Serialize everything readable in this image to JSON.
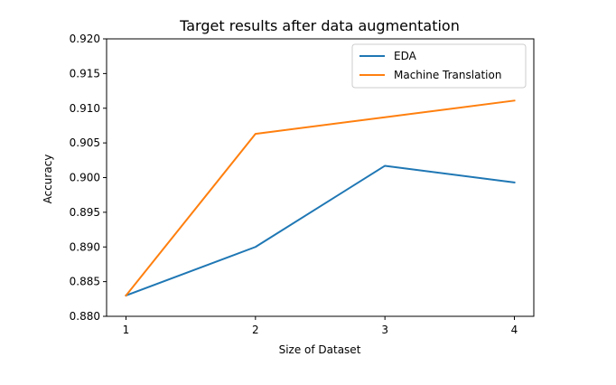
{
  "chart_data": {
    "type": "line",
    "title": "Target results after data augmentation",
    "xlabel": "Size of Dataset",
    "ylabel": "Accuracy",
    "x": [
      1,
      2,
      3,
      4
    ],
    "xticks": [
      "1",
      "2",
      "3",
      "4"
    ],
    "xlim": [
      0.85,
      4.15
    ],
    "ylim": [
      0.88,
      0.92
    ],
    "yticks": [
      "0.880",
      "0.885",
      "0.890",
      "0.895",
      "0.900",
      "0.905",
      "0.910",
      "0.915",
      "0.920"
    ],
    "grid": false,
    "legend_position": "top-right",
    "series": [
      {
        "name": "EDA",
        "color": "#1f77b4",
        "values": [
          0.883,
          0.89,
          0.9017,
          0.8993
        ]
      },
      {
        "name": "Machine Translation",
        "color": "#ff7f0e",
        "values": [
          0.883,
          0.9063,
          0.9087,
          0.9111
        ]
      }
    ]
  }
}
